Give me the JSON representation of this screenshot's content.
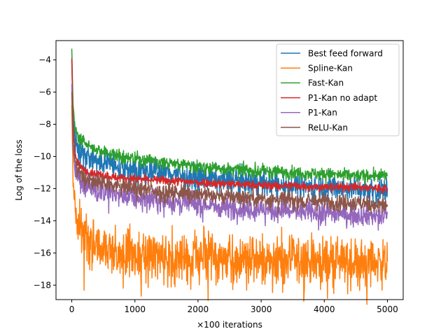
{
  "chart_data": {
    "type": "line",
    "title": "",
    "xlabel": "×100 iterations",
    "ylabel": "Log of the loss",
    "xlim": [
      -250,
      5250
    ],
    "ylim": [
      -18.9,
      -2.8
    ],
    "xticks": [
      0,
      1000,
      2000,
      3000,
      4000,
      5000
    ],
    "xtick_labels": [
      "0",
      "1000",
      "2000",
      "3000",
      "4000",
      "5000"
    ],
    "yticks": [
      -4,
      -6,
      -8,
      -10,
      -12,
      -14,
      -16,
      -18
    ],
    "ytick_labels": [
      "−4",
      "−6",
      "−8",
      "−10",
      "−12",
      "−14",
      "−16",
      "−18"
    ],
    "grid": false,
    "legend_position": "top-right",
    "series": [
      {
        "name": "Best feed forward",
        "color": "#1f77b4",
        "x": [
          0,
          20,
          50,
          100,
          200,
          400,
          700,
          1000,
          1500,
          2000,
          2500,
          3000,
          3500,
          4000,
          4500,
          5000
        ],
        "values": [
          -4.0,
          -7.5,
          -8.8,
          -9.4,
          -9.9,
          -10.3,
          -10.6,
          -10.8,
          -11.0,
          -11.3,
          -11.5,
          -11.7,
          -11.8,
          -11.9,
          -12.0,
          -12.1
        ],
        "noise": 0.45
      },
      {
        "name": "Spline-Kan",
        "color": "#ff7f0e",
        "x": [
          0,
          20,
          50,
          100,
          200,
          400,
          700,
          1000,
          1500,
          2000,
          2500,
          3000,
          3500,
          4000,
          4500,
          5000
        ],
        "values": [
          -6.8,
          -11.5,
          -13.2,
          -14.2,
          -15.0,
          -15.6,
          -15.9,
          -16.1,
          -16.2,
          -16.3,
          -16.4,
          -16.4,
          -16.5,
          -16.5,
          -16.6,
          -16.6
        ],
        "noise": 0.9
      },
      {
        "name": "Fast-Kan",
        "color": "#2ca02c",
        "x": [
          0,
          20,
          50,
          100,
          200,
          400,
          700,
          1000,
          1500,
          2000,
          2500,
          3000,
          3500,
          4000,
          4500,
          5000
        ],
        "values": [
          -3.3,
          -6.8,
          -8.2,
          -8.8,
          -9.2,
          -9.6,
          -9.9,
          -10.1,
          -10.4,
          -10.6,
          -10.8,
          -10.9,
          -11.0,
          -11.1,
          -11.2,
          -11.2
        ],
        "noise": 0.22
      },
      {
        "name": "P1-Kan no adapt",
        "color": "#d62728",
        "x": [
          0,
          20,
          50,
          100,
          200,
          400,
          700,
          1000,
          1500,
          2000,
          2500,
          3000,
          3500,
          4000,
          4500,
          5000
        ],
        "values": [
          -3.9,
          -8.0,
          -9.8,
          -10.5,
          -10.9,
          -11.1,
          -11.3,
          -11.4,
          -11.5,
          -11.6,
          -11.7,
          -11.8,
          -11.8,
          -11.9,
          -11.9,
          -12.0
        ],
        "noise": 0.15
      },
      {
        "name": "P1-Kan",
        "color": "#9467bd",
        "x": [
          0,
          20,
          50,
          100,
          200,
          400,
          700,
          1000,
          1500,
          2000,
          2500,
          3000,
          3500,
          4000,
          4500,
          5000
        ],
        "values": [
          -5.5,
          -9.5,
          -10.8,
          -11.3,
          -11.7,
          -12.1,
          -12.4,
          -12.6,
          -12.8,
          -13.0,
          -13.2,
          -13.3,
          -13.4,
          -13.5,
          -13.6,
          -13.7
        ],
        "noise": 0.38
      },
      {
        "name": "ReLU-Kan",
        "color": "#8c564b",
        "x": [
          0,
          20,
          50,
          100,
          200,
          400,
          700,
          1000,
          1500,
          2000,
          2500,
          3000,
          3500,
          4000,
          4500,
          5000
        ],
        "values": [
          -6.0,
          -9.2,
          -10.4,
          -10.9,
          -11.3,
          -11.6,
          -11.8,
          -12.0,
          -12.2,
          -12.3,
          -12.5,
          -12.6,
          -12.7,
          -12.8,
          -12.9,
          -13.0
        ],
        "noise": 0.3
      }
    ]
  }
}
